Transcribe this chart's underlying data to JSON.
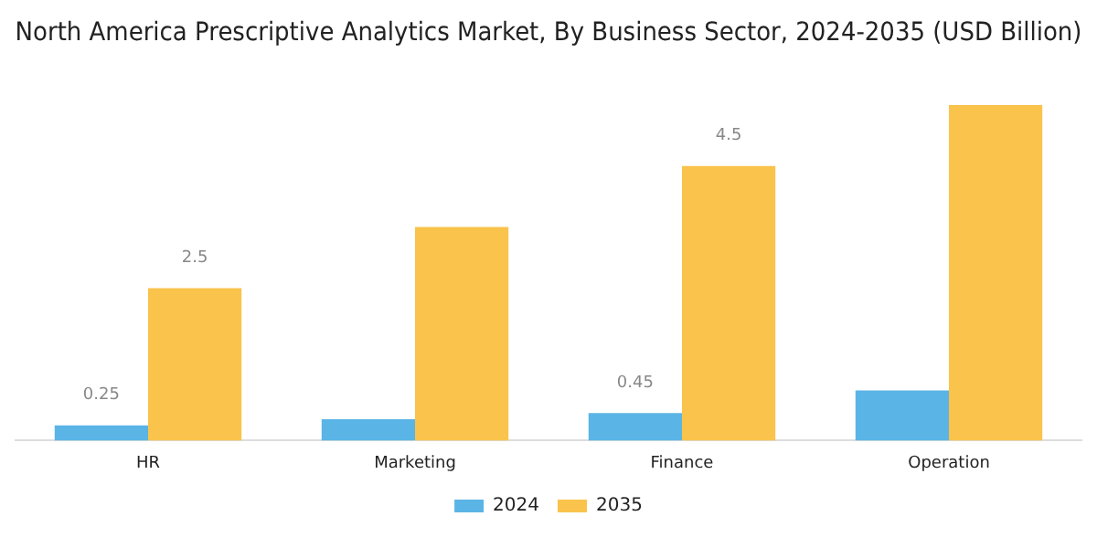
{
  "chart_data": {
    "type": "bar",
    "title": "North America Prescriptive Analytics Market, By Business Sector, 2024-2035 (USD Billion)",
    "categories": [
      "HR",
      "Marketing",
      "Finance",
      "Operation"
    ],
    "series": [
      {
        "name": "2024",
        "color": "#5ab4e5",
        "values": [
          0.25,
          0.35,
          0.45,
          0.82
        ],
        "value_labels": [
          "0.25",
          null,
          "0.45",
          null
        ]
      },
      {
        "name": "2035",
        "color": "#f9c34c",
        "values": [
          2.5,
          3.5,
          4.5,
          5.5
        ],
        "value_labels": [
          "2.5",
          null,
          "4.5",
          null
        ]
      }
    ],
    "grid": false,
    "legend": "bottom",
    "tick_labels": "x"
  }
}
